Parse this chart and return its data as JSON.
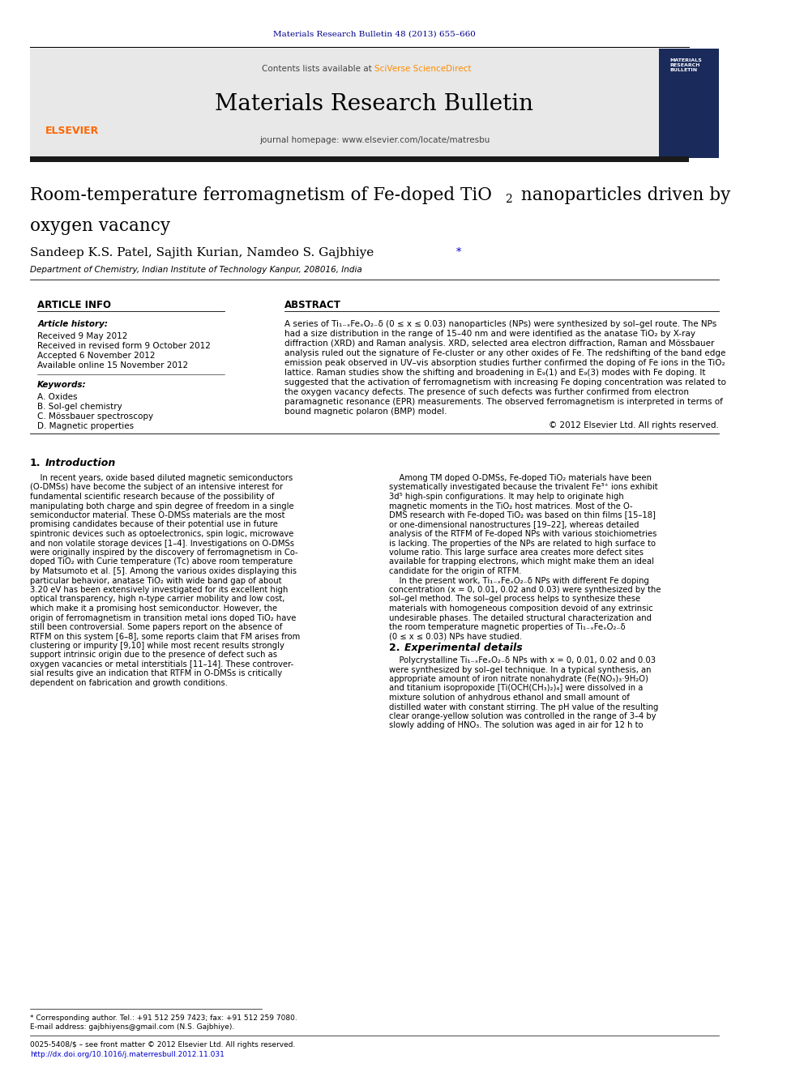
{
  "page_width": 9.92,
  "page_height": 13.23,
  "bg_color": "#ffffff",
  "journal_ref_text": "Materials Research Bulletin 48 (2013) 655–660",
  "journal_ref_color": "#00008B",
  "contents_text": "Contents lists available at ",
  "sciverse_text": "SciVerse ScienceDirect",
  "sciverse_color": "#FF8C00",
  "journal_name": "Materials Research Bulletin",
  "homepage_text": "journal homepage: www.elsevier.com/locate/matresbu",
  "header_bg": "#e8e8e8",
  "header_border_color": "#000000",
  "dark_bar_color": "#1a1a1a",
  "title_line1": "Room-temperature ferromagnetism of Fe-doped TiO",
  "title_sub": "2",
  "title_line2": " nanoparticles driven by",
  "title_line3": "oxygen vacancy",
  "authors": "Sandeep K.S. Patel, Sajith Kurian, Namdeo S. Gajbhiye",
  "authors_asterisk": "*",
  "affiliation": "Department of Chemistry, Indian Institute of Technology Kanpur, 208016, India",
  "article_info_header": "ARTICLE INFO",
  "abstract_header": "ABSTRACT",
  "article_history": "Article history:",
  "received": "Received 9 May 2012",
  "revised": "Received in revised form 9 October 2012",
  "accepted": "Accepted 6 November 2012",
  "available": "Available online 15 November 2012",
  "keywords_header": "Keywords:",
  "keyword1": "A. Oxides",
  "keyword2": "B. Sol-gel chemistry",
  "keyword3": "C. Mössbauer spectroscopy",
  "keyword4": "D. Magnetic properties",
  "abstract_text": "A series of Ti₁₋ₓFeₓO₂₋δ (0 ≤ x ≤ 0.03) nanoparticles (NPs) were synthesized by sol–gel route. The NPs had a size distribution in the range of 15–40 nm and were identified as the anatase TiO₂ by X-ray diffraction (XRD) and Raman analysis. XRD, selected area electron diffraction, Raman and Mössbauer analysis ruled out the signature of Fe-cluster or any other oxides of Fe. The redshifting of the band edge emission peak observed in UV–vis absorption studies further confirmed the doping of Fe ions in the TiO₂ lattice. Raman studies show the shifting and broadening in E₉(1) and E₉(3) modes with Fe doping. It suggested that the activation of ferromagnetism with increasing Fe doping concentration was related to the oxygen vacancy defects. The presence of such defects was further confirmed from electron paramagnetic resonance (EPR) measurements. The observed ferromagnetism is interpreted in terms of bound magnetic polaron (BMP) model.",
  "copyright_text": "© 2012 Elsevier Ltd. All rights reserved.",
  "section1_header": "1.  Introduction",
  "intro_text1": "In recent years, oxide based diluted magnetic semiconductors (O-DMSs) have become the subject of an intensive interest for fundamental scientific research because of the possibility of manipulating both charge and spin degree of freedom in a single semiconductor material. These O-DMSs materials are the most promising candidates because of their potential use in future spintronic devices such as optoelectronics, spin logic, microwave and non volatile storage devices [1–4]. Investigations on O-DMSs were originally inspired by the discovery of ferromagnetism in Co-doped TiO₂ with Curie temperature (Tᴄ) above room temperature by Matsumoto et al. [5]. Among the various oxides displaying this particular behavior, anatase TiO₂ with wide band gap of about 3.20 eV has been extensively investigated for its excellent high optical transparency, high n-type carrier mobility and low cost, which make it a promising host semiconductor. However, the origin of ferromagnetism in transition metal ions doped TiO₂ have still been controversial. Some papers report on the absence of RTFM on this system [6–8], some reports claim that FM arises from clustering or impurity [9,10] while most recent results strongly support intrinsic origin due to the presence of defect such as oxygen vacancies or metal interstitials [11–14]. These controversial results give an indication that RTFM in O-DMSs is critically dependent on fabrication and growth conditions.",
  "intro_text2_right": "Among TM doped O-DMSs, Fe-doped TiO₂ materials have been systematically investigated because the trivalent Fe³⁺ ions exhibit 3d⁵ high-spin configurations. It may help to originate high magnetic moments in the TiO₂ host matrices. Most of the O-DMS research with Fe-doped TiO₂ was based on thin films [15–18] or one-dimensional nanostructures [19–22], whereas detailed analysis of the RTFM of Fe-doped NPs with various stoichiometries is lacking. The properties of the NPs are related to high surface to volume ratio. This large surface area creates more defect sites available for trapping electrons, which might make them an ideal candidate for the origin of RTFM.\n    In the present work, Ti₁₋ₓFeₓO₂₋δ NPs with different Fe doping concentration (x = 0, 0.01, 0.02 and 0.03) were synthesized by the sol–gel method. The sol–gel process helps to synthesize these materials with homogeneous composition devoid of any extrinsic undesirable phases. The detailed structural characterization and the room temperature magnetic properties of Ti₁₋ₓFeₓO₂₋δ (0 ≤ x ≤ 0.03) NPs have studied.",
  "section2_header": "2.  Experimental details",
  "section2_text": "Polycrystalline Ti₁₋ₓFeₓO₂₋δ NPs with x = 0, 0.01, 0.02 and 0.03 were synthesized by sol–gel technique. In a typical synthesis, an appropriate amount of iron nitrate nonahydrate (Fe(NO₃)₃·9H₂O) and titanium isopropoxide [Ti(OCH(CH₃)₂)₄] were dissolved in a mixture solution of anhydrous ethanol and small amount of distilled water with constant stirring. The pH value of the resulting clear orange-yellow solution was controlled in the range of 3–4 by slowly adding of HNO₃. The solution was aged in air for 12 h to",
  "footnote_text": "* Corresponding author. Tel.: +91 512 259 7423; fax: +91 512 259 7080.",
  "footnote_email": "E-mail address: gajbhiyens@gmail.com (N.S. Gajbhiye).",
  "issn_text": "0025-5408/$ – see front matter © 2012 Elsevier Ltd. All rights reserved.",
  "doi_text": "http://dx.doi.org/10.1016/j.materresbull.2012.11.031",
  "elsevier_orange": "#FF6600",
  "link_blue": "#0000CD",
  "dark_blue": "#00008B"
}
